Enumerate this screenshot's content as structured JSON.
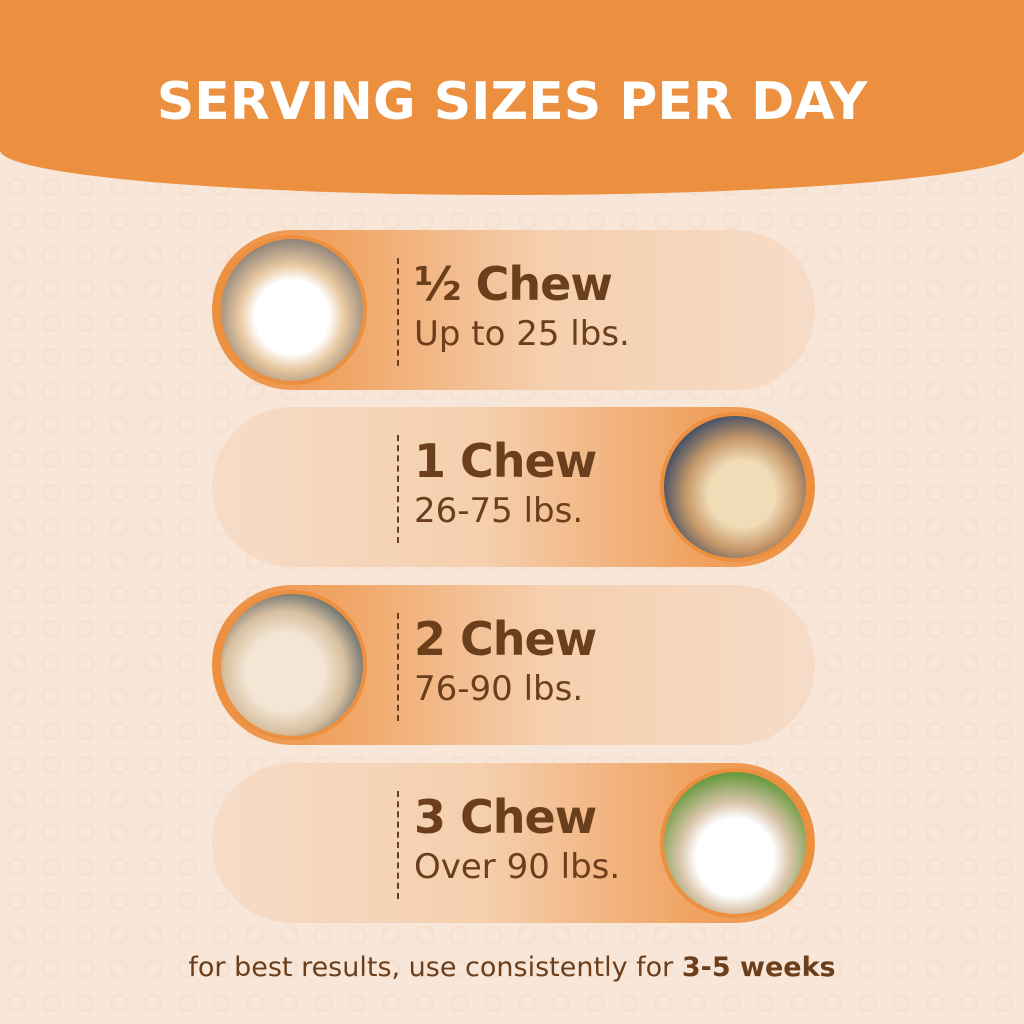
{
  "title": "SERVING SIZES PER DAY",
  "rows": [
    {
      "amount": "½ Chew",
      "weight": "Up to 25 lbs.",
      "photo": "white-fluffy-dog"
    },
    {
      "amount": "1 Chew",
      "weight": "26-75 lbs.",
      "photo": "yellow-labrador"
    },
    {
      "amount": "2 Chew",
      "weight": "76-90 lbs.",
      "photo": "goldendoodle"
    },
    {
      "amount": "3 Chew",
      "weight": "Over 90 lbs.",
      "photo": "white-spitz-dog"
    }
  ],
  "footer": {
    "text": "for best results, use consistently for ",
    "bold": "3-5 weeks"
  },
  "colors": {
    "accent": "#ec8f3f",
    "text": "#6b3e1c",
    "background": "#f8e6d8"
  }
}
